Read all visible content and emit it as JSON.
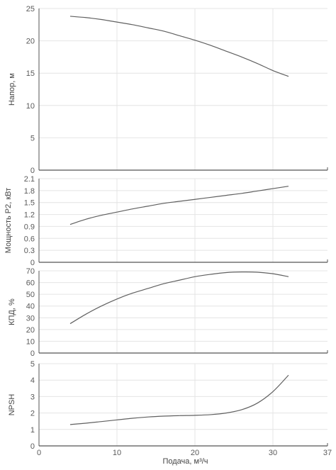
{
  "colors": {
    "grid": "#e4e4e4",
    "axis": "#555555",
    "curve": "#606060",
    "text": "#5a5a5a"
  },
  "chart_data": [
    {
      "type": "line",
      "ylabel": "Напор, м",
      "ylim": [
        0,
        25
      ],
      "yticks": [
        0,
        5,
        10,
        15,
        20,
        25
      ],
      "ytick_labels": [
        "0",
        "5",
        "10",
        "15",
        "20",
        "25"
      ],
      "xlim": [
        0,
        37
      ],
      "series": [
        {
          "x": [
            4,
            6,
            8,
            10,
            12,
            14,
            16,
            18,
            20,
            22,
            24,
            26,
            28,
            30,
            32
          ],
          "values": [
            23.8,
            23.6,
            23.3,
            22.9,
            22.5,
            22.0,
            21.5,
            20.8,
            20.1,
            19.3,
            18.4,
            17.5,
            16.5,
            15.4,
            14.5
          ]
        }
      ]
    },
    {
      "type": "line",
      "ylabel": "Мощность P2, кВт",
      "ylim": [
        0,
        2.1
      ],
      "yticks": [
        0,
        0.3,
        0.6,
        0.9,
        1.2,
        1.5,
        1.8,
        2.1
      ],
      "ytick_labels": [
        "0",
        "0.3",
        "0.6",
        "0.9",
        "1.2",
        "1.5",
        "1.8",
        "2.1"
      ],
      "xlim": [
        0,
        37
      ],
      "series": [
        {
          "x": [
            4,
            6,
            8,
            10,
            12,
            14,
            16,
            18,
            20,
            22,
            24,
            26,
            28,
            30,
            32
          ],
          "values": [
            0.95,
            1.08,
            1.18,
            1.26,
            1.34,
            1.41,
            1.48,
            1.53,
            1.58,
            1.63,
            1.68,
            1.73,
            1.79,
            1.85,
            1.91
          ]
        }
      ]
    },
    {
      "type": "line",
      "ylabel": "КПД, %",
      "ylim": [
        0,
        70
      ],
      "yticks": [
        0,
        10,
        20,
        30,
        40,
        50,
        60,
        70
      ],
      "ytick_labels": [
        "0",
        "10",
        "20",
        "30",
        "40",
        "50",
        "60",
        "70"
      ],
      "xlim": [
        0,
        37
      ],
      "series": [
        {
          "x": [
            4,
            6,
            8,
            10,
            12,
            14,
            16,
            18,
            20,
            22,
            24,
            26,
            28,
            30,
            32
          ],
          "values": [
            25,
            33,
            40,
            46,
            51,
            55,
            59,
            62,
            65,
            67,
            68.5,
            69,
            68.8,
            67.5,
            65
          ]
        }
      ]
    },
    {
      "type": "line",
      "ylabel": "NPSH",
      "xlabel": "Подача, м³/ч",
      "ylim": [
        0,
        5
      ],
      "yticks": [
        0,
        1,
        2,
        3,
        4,
        5
      ],
      "ytick_labels": [
        "0",
        "1",
        "2",
        "3",
        "4",
        "5"
      ],
      "xlim": [
        0,
        37
      ],
      "xticks": [
        0,
        10,
        20,
        30,
        37
      ],
      "xtick_labels": [
        "0",
        "10",
        "20",
        "30",
        "37"
      ],
      "series": [
        {
          "x": [
            4,
            6,
            8,
            10,
            12,
            14,
            16,
            18,
            20,
            22,
            24,
            26,
            28,
            30,
            32
          ],
          "values": [
            1.3,
            1.38,
            1.48,
            1.58,
            1.68,
            1.76,
            1.81,
            1.84,
            1.86,
            1.9,
            2.0,
            2.2,
            2.6,
            3.3,
            4.3
          ]
        }
      ]
    }
  ]
}
